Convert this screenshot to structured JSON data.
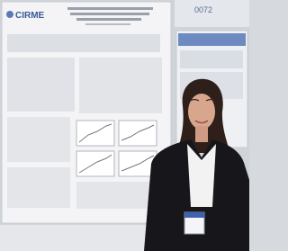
{
  "poster": {
    "logo": "CIRME"
  },
  "board_number": "0072"
}
